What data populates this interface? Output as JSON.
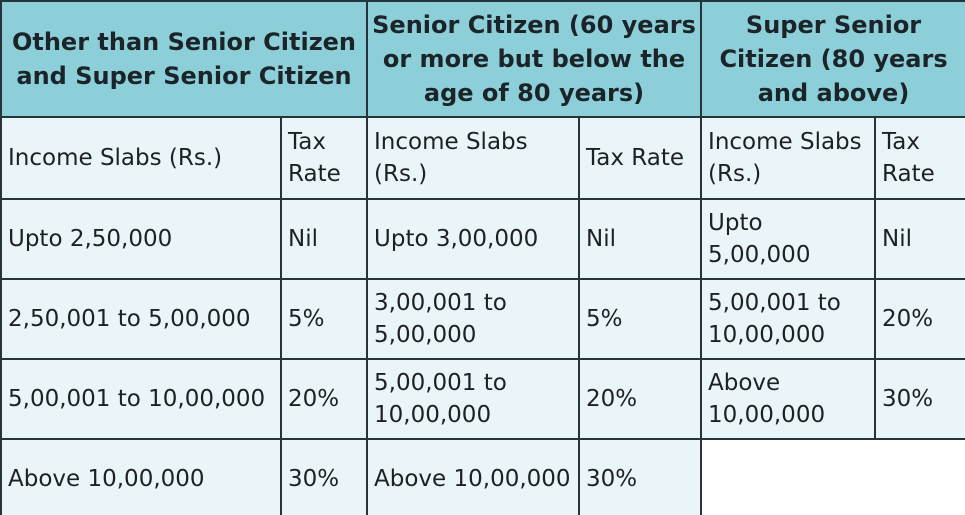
{
  "groups": [
    {
      "title": "Other than Senior Citizen and Super Senior Citizen"
    },
    {
      "title": "Senior Citizen (60 years or more but below the age of 80 years)"
    },
    {
      "title": "Super Senior Citizen (80 years and above)"
    }
  ],
  "subheaders": {
    "other": {
      "slab": "Income Slabs (Rs.)",
      "rate": "Tax Rate"
    },
    "senior": {
      "slab": "Income Slabs (Rs.)",
      "rate": "Tax Rate"
    },
    "super": {
      "slab": "Income Slabs (Rs.)",
      "rate": "Tax Rate"
    }
  },
  "rows": [
    {
      "other": {
        "slab": "Upto 2,50,000",
        "rate": "Nil"
      },
      "senior": {
        "slab": "Upto 3,00,000",
        "rate": "Nil"
      },
      "super": {
        "slab": "Upto 5,00,000",
        "rate": "Nil"
      }
    },
    {
      "other": {
        "slab": "2,50,001 to 5,00,000",
        "rate": "5%"
      },
      "senior": {
        "slab": "3,00,001 to 5,00,000",
        "rate": "5%"
      },
      "super": {
        "slab": "5,00,001 to 10,00,000",
        "rate": "20%"
      }
    },
    {
      "other": {
        "slab": "5,00,001 to 10,00,000",
        "rate": "20%"
      },
      "senior": {
        "slab": "5,00,001 to 10,00,000",
        "rate": "20%"
      },
      "super": {
        "slab": "Above 10,00,000",
        "rate": "30%"
      }
    },
    {
      "other": {
        "slab": "Above 10,00,000",
        "rate": "30%"
      },
      "senior": {
        "slab": "Above 10,00,000",
        "rate": "30%"
      }
    }
  ],
  "colors": {
    "header_bg": "#8dcfd9",
    "cell_bg": "#e9f5f8",
    "border": "#27343a"
  }
}
